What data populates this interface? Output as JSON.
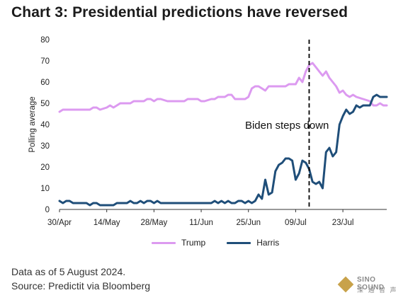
{
  "title": "Chart 3: Presidential predictions have reversed",
  "footer": {
    "note": "Data as of 5 August 2024.",
    "source": "Source: Predictit via Bloomberg"
  },
  "logo": {
    "name": "SINO SOUND",
    "sub": "深 通 智 声"
  },
  "colors": {
    "trump": "#dc9af0",
    "harris": "#1f4e79",
    "vline": "#000000"
  },
  "chart_data": {
    "type": "line",
    "title": "Chart 3: Presidential predictions have reversed",
    "xlabel": "",
    "ylabel": "Polling average",
    "ylim": [
      0,
      80
    ],
    "yticks": [
      0,
      10,
      20,
      30,
      40,
      50,
      60,
      70,
      80
    ],
    "xlim": [
      "2024-04-30",
      "2024-08-05"
    ],
    "xticks": [
      {
        "date": "2024-04-30",
        "label": "30/Apr"
      },
      {
        "date": "2024-05-14",
        "label": "14/May"
      },
      {
        "date": "2024-05-28",
        "label": "28/May"
      },
      {
        "date": "2024-06-11",
        "label": "11/Jun"
      },
      {
        "date": "2024-06-25",
        "label": "25/Jun"
      },
      {
        "date": "2024-07-09",
        "label": "09/Jul"
      },
      {
        "date": "2024-07-23",
        "label": "23/Jul"
      }
    ],
    "grid": false,
    "legend": "bottom",
    "annotations": [
      {
        "type": "vline",
        "x": "2024-07-13"
      },
      {
        "type": "text",
        "text": "Biden steps down",
        "x": "2024-06-24",
        "y": 38
      }
    ],
    "series": [
      {
        "name": "Trump",
        "points": [
          [
            "2024-04-30",
            46
          ],
          [
            "2024-05-01",
            47
          ],
          [
            "2024-05-03",
            47
          ],
          [
            "2024-05-06",
            47
          ],
          [
            "2024-05-09",
            47
          ],
          [
            "2024-05-10",
            48
          ],
          [
            "2024-05-11",
            48
          ],
          [
            "2024-05-12",
            47
          ],
          [
            "2024-05-14",
            48
          ],
          [
            "2024-05-15",
            49
          ],
          [
            "2024-05-16",
            48
          ],
          [
            "2024-05-17",
            49
          ],
          [
            "2024-05-18",
            50
          ],
          [
            "2024-05-21",
            50
          ],
          [
            "2024-05-22",
            51
          ],
          [
            "2024-05-25",
            51
          ],
          [
            "2024-05-26",
            52
          ],
          [
            "2024-05-27",
            52
          ],
          [
            "2024-05-28",
            51
          ],
          [
            "2024-05-29",
            52
          ],
          [
            "2024-05-30",
            52
          ],
          [
            "2024-06-01",
            51
          ],
          [
            "2024-06-02",
            51
          ],
          [
            "2024-06-04",
            51
          ],
          [
            "2024-06-06",
            51
          ],
          [
            "2024-06-07",
            52
          ],
          [
            "2024-06-10",
            52
          ],
          [
            "2024-06-11",
            51
          ],
          [
            "2024-06-12",
            51
          ],
          [
            "2024-06-14",
            52
          ],
          [
            "2024-06-15",
            52
          ],
          [
            "2024-06-16",
            53
          ],
          [
            "2024-06-18",
            53
          ],
          [
            "2024-06-19",
            54
          ],
          [
            "2024-06-20",
            54
          ],
          [
            "2024-06-21",
            52
          ],
          [
            "2024-06-22",
            52
          ],
          [
            "2024-06-24",
            52
          ],
          [
            "2024-06-25",
            53
          ],
          [
            "2024-06-26",
            57
          ],
          [
            "2024-06-27",
            58
          ],
          [
            "2024-06-28",
            58
          ],
          [
            "2024-06-29",
            57
          ],
          [
            "2024-06-30",
            56
          ],
          [
            "2024-07-01",
            58
          ],
          [
            "2024-07-02",
            58
          ],
          [
            "2024-07-04",
            58
          ],
          [
            "2024-07-06",
            58
          ],
          [
            "2024-07-07",
            59
          ],
          [
            "2024-07-08",
            59
          ],
          [
            "2024-07-09",
            59
          ],
          [
            "2024-07-10",
            62
          ],
          [
            "2024-07-11",
            60
          ],
          [
            "2024-07-12",
            65
          ],
          [
            "2024-07-13",
            68
          ],
          [
            "2024-07-14",
            69
          ],
          [
            "2024-07-15",
            67
          ],
          [
            "2024-07-16",
            65
          ],
          [
            "2024-07-17",
            63
          ],
          [
            "2024-07-18",
            65
          ],
          [
            "2024-07-19",
            62
          ],
          [
            "2024-07-20",
            60
          ],
          [
            "2024-07-21",
            58
          ],
          [
            "2024-07-22",
            55
          ],
          [
            "2024-07-23",
            56
          ],
          [
            "2024-07-24",
            54
          ],
          [
            "2024-07-25",
            53
          ],
          [
            "2024-07-26",
            54
          ],
          [
            "2024-07-27",
            53
          ],
          [
            "2024-07-29",
            52
          ],
          [
            "2024-07-31",
            51
          ],
          [
            "2024-08-01",
            49
          ],
          [
            "2024-08-02",
            49
          ],
          [
            "2024-08-03",
            50
          ],
          [
            "2024-08-04",
            49
          ],
          [
            "2024-08-05",
            49
          ]
        ]
      },
      {
        "name": "Harris",
        "points": [
          [
            "2024-04-30",
            4
          ],
          [
            "2024-05-01",
            3
          ],
          [
            "2024-05-02",
            4
          ],
          [
            "2024-05-03",
            4
          ],
          [
            "2024-05-04",
            3
          ],
          [
            "2024-05-06",
            3
          ],
          [
            "2024-05-08",
            3
          ],
          [
            "2024-05-09",
            2
          ],
          [
            "2024-05-10",
            3
          ],
          [
            "2024-05-11",
            3
          ],
          [
            "2024-05-12",
            2
          ],
          [
            "2024-05-14",
            2
          ],
          [
            "2024-05-16",
            2
          ],
          [
            "2024-05-17",
            3
          ],
          [
            "2024-05-18",
            3
          ],
          [
            "2024-05-20",
            3
          ],
          [
            "2024-05-21",
            4
          ],
          [
            "2024-05-22",
            3
          ],
          [
            "2024-05-23",
            3
          ],
          [
            "2024-05-24",
            4
          ],
          [
            "2024-05-25",
            3
          ],
          [
            "2024-05-26",
            4
          ],
          [
            "2024-05-27",
            4
          ],
          [
            "2024-05-28",
            3
          ],
          [
            "2024-05-29",
            4
          ],
          [
            "2024-05-30",
            3
          ],
          [
            "2024-06-01",
            3
          ],
          [
            "2024-06-03",
            3
          ],
          [
            "2024-06-05",
            3
          ],
          [
            "2024-06-07",
            3
          ],
          [
            "2024-06-09",
            3
          ],
          [
            "2024-06-11",
            3
          ],
          [
            "2024-06-13",
            3
          ],
          [
            "2024-06-14",
            3
          ],
          [
            "2024-06-15",
            4
          ],
          [
            "2024-06-16",
            3
          ],
          [
            "2024-06-17",
            4
          ],
          [
            "2024-06-18",
            3
          ],
          [
            "2024-06-19",
            4
          ],
          [
            "2024-06-20",
            3
          ],
          [
            "2024-06-21",
            3
          ],
          [
            "2024-06-22",
            4
          ],
          [
            "2024-06-23",
            4
          ],
          [
            "2024-06-24",
            3
          ],
          [
            "2024-06-25",
            4
          ],
          [
            "2024-06-26",
            3
          ],
          [
            "2024-06-27",
            4
          ],
          [
            "2024-06-28",
            7
          ],
          [
            "2024-06-29",
            5
          ],
          [
            "2024-06-30",
            14
          ],
          [
            "2024-07-01",
            7
          ],
          [
            "2024-07-02",
            8
          ],
          [
            "2024-07-03",
            18
          ],
          [
            "2024-07-04",
            21
          ],
          [
            "2024-07-05",
            22
          ],
          [
            "2024-07-06",
            24
          ],
          [
            "2024-07-07",
            24
          ],
          [
            "2024-07-08",
            23
          ],
          [
            "2024-07-09",
            14
          ],
          [
            "2024-07-10",
            17
          ],
          [
            "2024-07-11",
            23
          ],
          [
            "2024-07-12",
            22
          ],
          [
            "2024-07-13",
            19
          ],
          [
            "2024-07-14",
            13
          ],
          [
            "2024-07-15",
            12
          ],
          [
            "2024-07-16",
            13
          ],
          [
            "2024-07-17",
            10
          ],
          [
            "2024-07-18",
            27
          ],
          [
            "2024-07-19",
            29
          ],
          [
            "2024-07-20",
            25
          ],
          [
            "2024-07-21",
            27
          ],
          [
            "2024-07-22",
            40
          ],
          [
            "2024-07-23",
            44
          ],
          [
            "2024-07-24",
            47
          ],
          [
            "2024-07-25",
            45
          ],
          [
            "2024-07-26",
            46
          ],
          [
            "2024-07-27",
            49
          ],
          [
            "2024-07-28",
            48
          ],
          [
            "2024-07-29",
            49
          ],
          [
            "2024-07-31",
            49
          ],
          [
            "2024-08-01",
            53
          ],
          [
            "2024-08-02",
            54
          ],
          [
            "2024-08-03",
            53
          ],
          [
            "2024-08-05",
            53
          ]
        ]
      }
    ]
  }
}
